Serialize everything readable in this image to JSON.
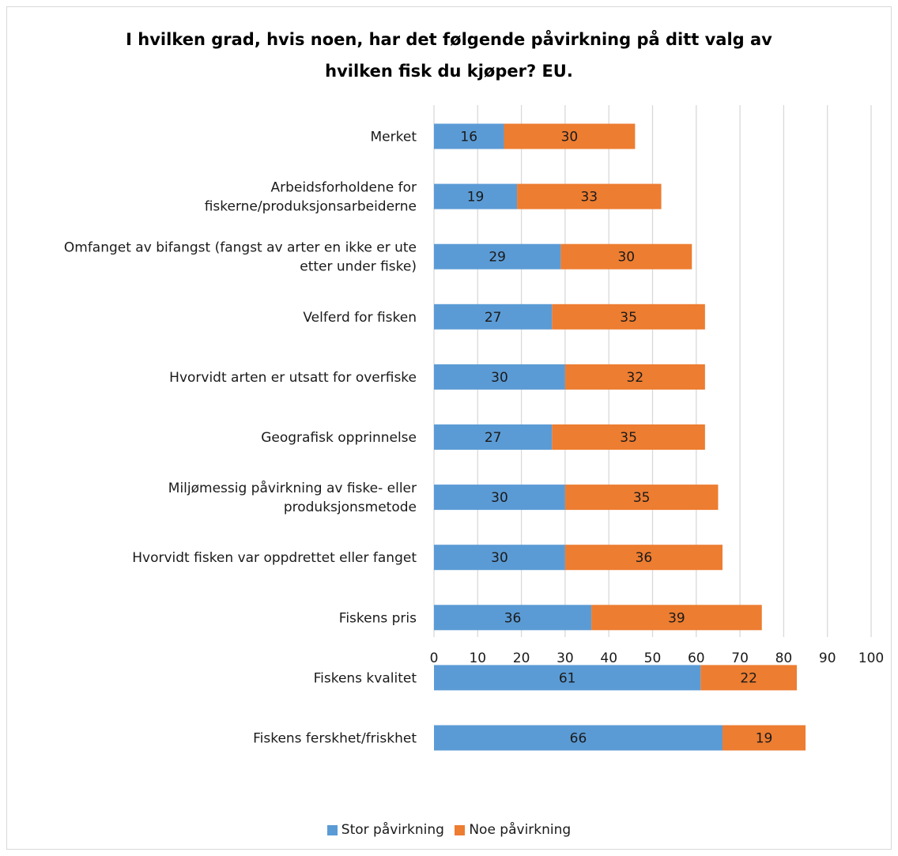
{
  "chart_data": {
    "type": "bar",
    "orientation": "horizontal",
    "stacked": true,
    "title_lines": [
      "I hvilken grad, hvis noen, har det følgende påvirkning på ditt valg av",
      "hvilken fisk du kjøper? EU."
    ],
    "categories": [
      [
        "Merket"
      ],
      [
        "Arbeidsforholdene for",
        "fiskerne/produksjonsarbeiderne"
      ],
      [
        "Omfanget av bifangst (fangst av arter en ikke er ute",
        "etter under fiske)"
      ],
      [
        "Velferd for fisken"
      ],
      [
        "Hvorvidt arten er utsatt for overfiske"
      ],
      [
        "Geografisk opprinnelse"
      ],
      [
        "Miljømessig påvirkning av fiske- eller",
        "produksjonsmetode"
      ],
      [
        "Hvorvidt fisken var oppdrettet eller fanget"
      ],
      [
        "Fiskens pris"
      ],
      [
        "Fiskens kvalitet"
      ],
      [
        "Fiskens ferskhet/friskhet"
      ]
    ],
    "series": [
      {
        "name": "Stor påvirkning",
        "color": "#5b9bd5",
        "values": [
          16,
          19,
          29,
          27,
          30,
          27,
          30,
          30,
          36,
          61,
          66
        ]
      },
      {
        "name": "Noe påvirkning",
        "color": "#ed7d31",
        "values": [
          30,
          33,
          30,
          35,
          32,
          35,
          35,
          36,
          39,
          22,
          19
        ]
      }
    ],
    "xlim": [
      0,
      100
    ],
    "xticks": [
      0,
      10,
      20,
      30,
      40,
      50,
      60,
      70,
      80,
      90,
      100
    ],
    "grid": true,
    "legend_position": "bottom"
  }
}
